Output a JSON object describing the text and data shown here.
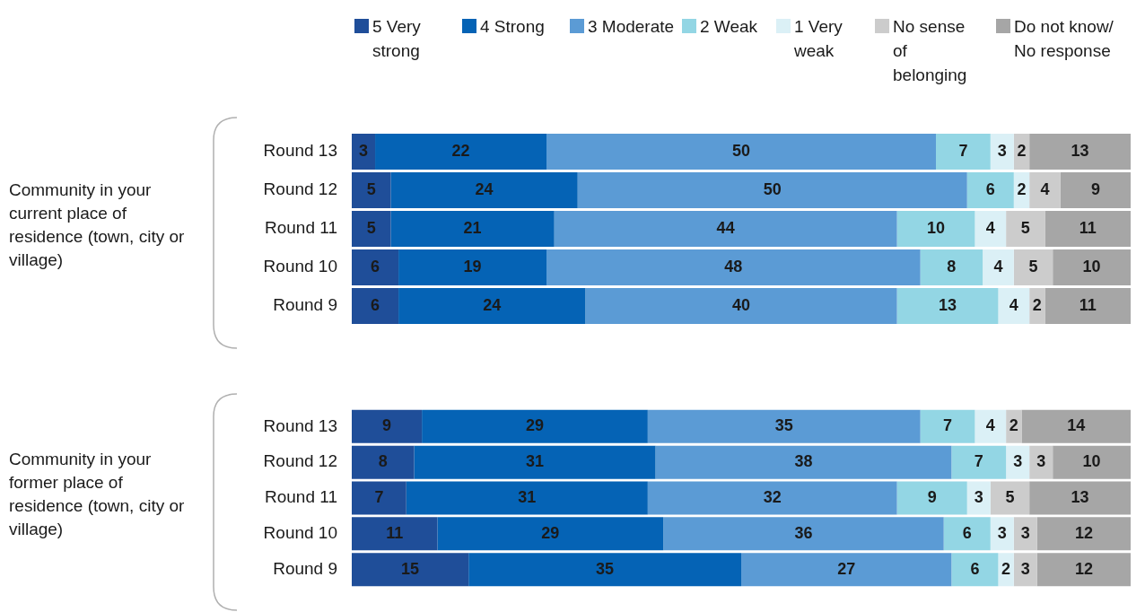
{
  "chart_data": [
    {
      "type": "bar",
      "orientation": "horizontal",
      "stacked": true,
      "data_labels": true,
      "legend": "top",
      "tick_labels": "y",
      "xlim": [
        0,
        100
      ],
      "ylabel": "Community in your current place of residence (town, city or village)",
      "categories": [
        "Round 13",
        "Round 12",
        "Round 11",
        "Round 10",
        "Round 9"
      ],
      "series": [
        {
          "name": "5 Very strong",
          "color": "#1f4e99",
          "values": [
            3,
            5,
            5,
            6,
            6
          ]
        },
        {
          "name": "4 Strong",
          "color": "#0563b5",
          "values": [
            22,
            24,
            21,
            19,
            24
          ]
        },
        {
          "name": "3 Moderate",
          "color": "#5b9bd5",
          "values": [
            50,
            50,
            44,
            48,
            40
          ]
        },
        {
          "name": "2 Weak",
          "color": "#93d6e4",
          "values": [
            7,
            6,
            10,
            8,
            13
          ]
        },
        {
          "name": "1 Very weak",
          "color": "#dbf0f6",
          "values": [
            3,
            2,
            4,
            4,
            4
          ]
        },
        {
          "name": "No sense of belonging",
          "color": "#cccccc",
          "values": [
            2,
            4,
            5,
            5,
            2
          ]
        },
        {
          "name": "Do not know/ No response",
          "color": "#a6a6a6",
          "values": [
            13,
            9,
            11,
            10,
            11
          ]
        }
      ]
    },
    {
      "type": "bar",
      "orientation": "horizontal",
      "stacked": true,
      "data_labels": true,
      "tick_labels": "y",
      "xlim": [
        0,
        100
      ],
      "ylabel": "Community in your former place of residence (town, city or village)",
      "categories": [
        "Round 13",
        "Round 12",
        "Round 11",
        "Round 10",
        "Round 9"
      ],
      "series": [
        {
          "color": "#1f4e99",
          "values": [
            9,
            8,
            7,
            11,
            15
          ]
        },
        {
          "color": "#0563b5",
          "values": [
            29,
            31,
            31,
            29,
            35
          ]
        },
        {
          "color": "#5b9bd5",
          "values": [
            35,
            38,
            32,
            36,
            27
          ]
        },
        {
          "color": "#93d6e4",
          "values": [
            7,
            7,
            9,
            6,
            6
          ]
        },
        {
          "color": "#dbf0f6",
          "values": [
            4,
            3,
            3,
            3,
            2
          ]
        },
        {
          "color": "#cccccc",
          "values": [
            2,
            3,
            5,
            3,
            3
          ]
        },
        {
          "color": "#a6a6a6",
          "values": [
            14,
            10,
            13,
            12,
            12
          ]
        }
      ]
    }
  ]
}
